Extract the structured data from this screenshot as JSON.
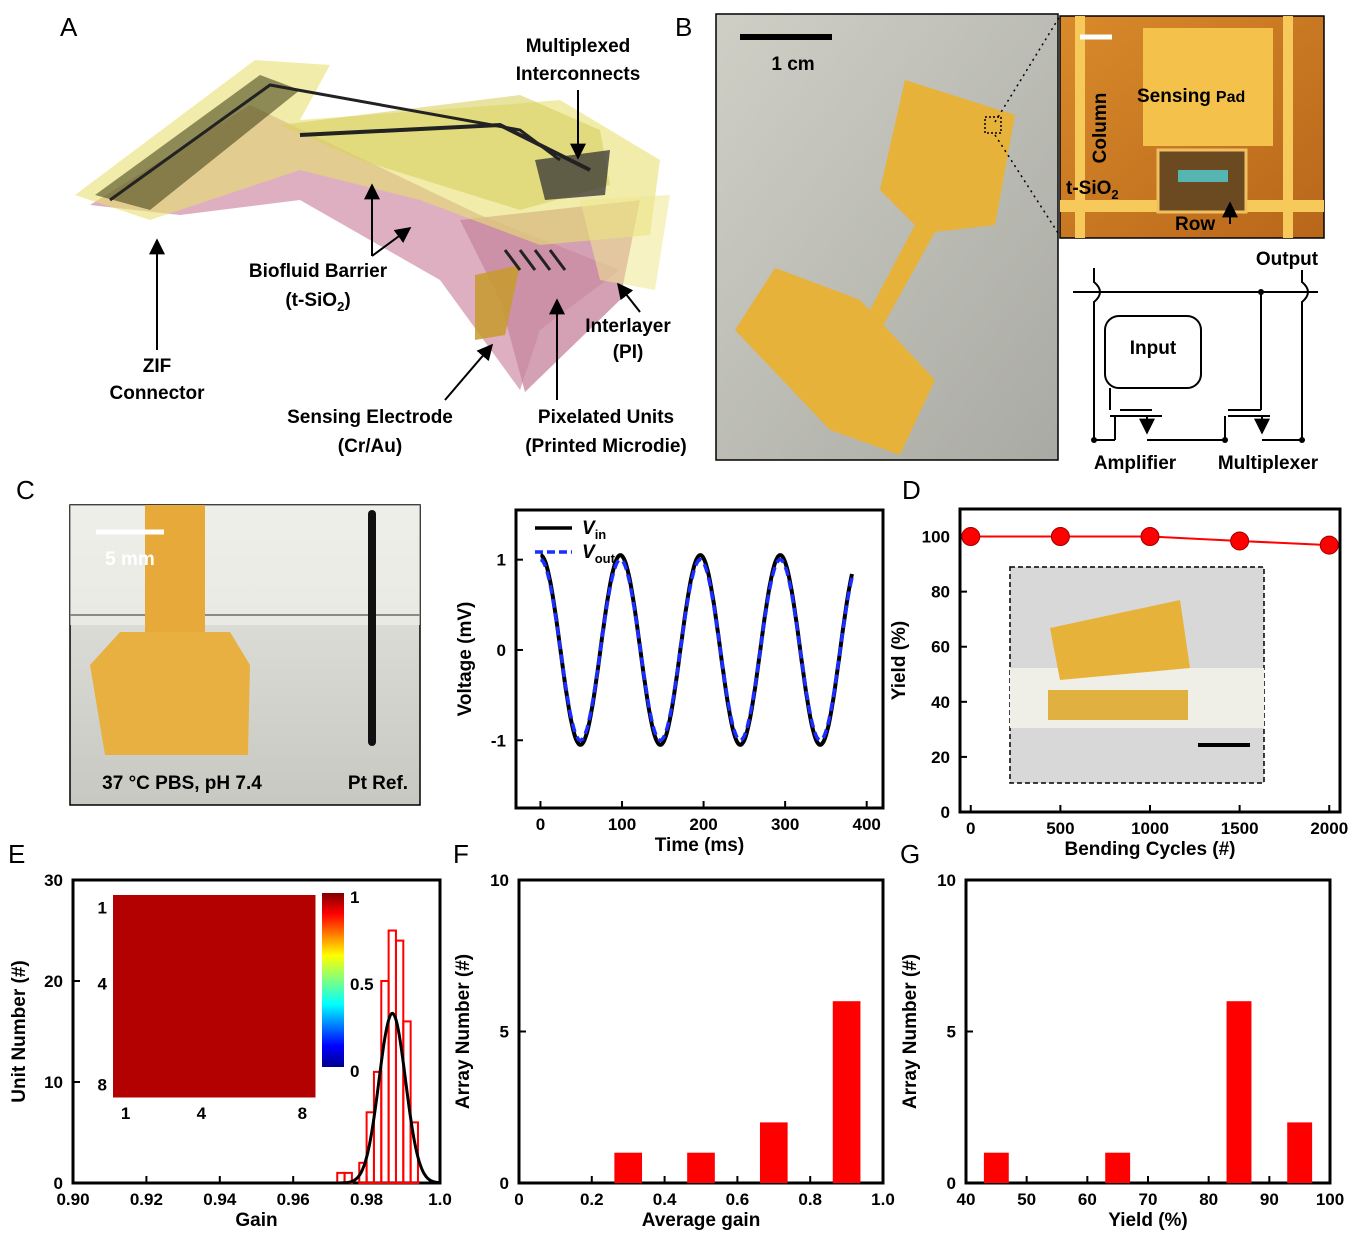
{
  "panels": {
    "a": {
      "letter": "A",
      "labels": {
        "mux1": "Multiplexed",
        "mux2": "Interconnects",
        "bio1": "Biofluid Barrier",
        "bio2": "(t-SiO",
        "zif1": "ZIF",
        "zif2": "Connector",
        "inter1": "Interlayer",
        "inter2": "(PI)",
        "sens1": "Sensing Electrode",
        "sens2": "(Cr/Au)",
        "pix1": "Pixelated Units",
        "pix2": "(Printed Microdie)"
      }
    },
    "b": {
      "letter": "B",
      "scale": "1 cm",
      "micro": {
        "column": "Column",
        "pad": "Sensing",
        "pad_small": "Pad",
        "tsio": "t-SiO",
        "row": "Row"
      },
      "circuit": {
        "output": "Output",
        "input": "Input",
        "amplifier": "Amplifier",
        "multiplexer": "Multiplexer"
      }
    },
    "c": {
      "letter": "C",
      "photo": {
        "scale": "5 mm",
        "caption_left": "37 °C PBS, pH 7.4",
        "caption_right": "Pt Ref."
      }
    },
    "d": {
      "letter": "D",
      "inset_scale_bar": true
    },
    "e": {
      "letter": "E"
    },
    "f": {
      "letter": "F"
    },
    "g": {
      "letter": "G"
    }
  },
  "colors": {
    "red": "#ff0000",
    "blue": "#1a2eff",
    "black": "#000000",
    "polyimide": "#e6b23a",
    "pink": "#d59bb0"
  },
  "chart_data": [
    {
      "id": "C-plot",
      "type": "line",
      "xlabel": "Time (ms)",
      "ylabel": "Voltage (mV)",
      "xlim": [
        -30,
        420
      ],
      "ylim": [
        -1.75,
        1.55
      ],
      "xticks": [
        0,
        100,
        200,
        300,
        400
      ],
      "yticks": [
        -1,
        0,
        1
      ],
      "legend": {
        "position": "top-left"
      },
      "series": [
        {
          "name": "V",
          "sub": "in",
          "color": "#000000",
          "style": "solid",
          "amplitude": 1.05,
          "period_ms": 98,
          "phase_deg": 90,
          "x_range": [
            0,
            382
          ]
        },
        {
          "name": "V",
          "sub": "out",
          "color": "#1a2eff",
          "style": "dashed",
          "amplitude": 1.0,
          "period_ms": 98,
          "phase_deg": 90,
          "x_range": [
            0,
            382
          ]
        }
      ]
    },
    {
      "id": "D-plot",
      "type": "line",
      "xlabel": "Bending Cycles (#)",
      "ylabel": "Yield (%)",
      "xlim": [
        -60,
        2060
      ],
      "ylim": [
        0,
        110
      ],
      "xticks": [
        0,
        500,
        1000,
        1500,
        2000
      ],
      "yticks": [
        0,
        20,
        40,
        60,
        80,
        100
      ],
      "series": [
        {
          "color": "#ff0000",
          "x": [
            0,
            500,
            1000,
            1500,
            2000
          ],
          "y": [
            100,
            100,
            100,
            98.4,
            96.9
          ]
        }
      ]
    },
    {
      "id": "E-plot",
      "type": "bar",
      "xlabel": "Gain",
      "ylabel": "Unit  Number (#)",
      "xlim": [
        0.9,
        1.0
      ],
      "ylim": [
        0,
        30
      ],
      "xticks": [
        0.9,
        0.92,
        0.94,
        0.96,
        0.98,
        1.0
      ],
      "xtick_labels": [
        "0.90",
        "0.92",
        "0.94",
        "0.96",
        "0.98",
        "1.0"
      ],
      "yticks": [
        0,
        10,
        20,
        30
      ],
      "histogram": {
        "bin_width": 0.002,
        "bins": [
          [
            0.972,
            1
          ],
          [
            0.974,
            1
          ],
          [
            0.978,
            2
          ],
          [
            0.98,
            7
          ],
          [
            0.982,
            11
          ],
          [
            0.984,
            20
          ],
          [
            0.986,
            25
          ],
          [
            0.988,
            24
          ],
          [
            0.99,
            16
          ],
          [
            0.992,
            6
          ]
        ],
        "color": "#ff0000"
      },
      "fit": {
        "type": "gaussian",
        "mean": 0.987,
        "sigma": 0.0036,
        "peak": 16.8,
        "color": "#000000"
      },
      "inset_heatmap": {
        "rows": 8,
        "cols": 8,
        "value": 0.98,
        "xticks": [
          "1",
          "4",
          "8"
        ],
        "yticks": [
          "1",
          "4",
          "8"
        ],
        "colorbar": {
          "min": 0,
          "max": 1,
          "ticks": [
            "1",
            "0.5",
            "0"
          ],
          "colormap": "jet"
        }
      }
    },
    {
      "id": "F-plot",
      "type": "bar",
      "xlabel": "Average gain",
      "ylabel": "Array Number (#)",
      "xlim": [
        0,
        1.0
      ],
      "ylim": [
        0,
        10
      ],
      "xticks": [
        0,
        0.2,
        0.4,
        0.6,
        0.8,
        1.0
      ],
      "xtick_labels": [
        "0",
        "0.2",
        "0.4",
        "0.6",
        "0.8",
        "1.0"
      ],
      "yticks": [
        0,
        5,
        10
      ],
      "bars": [
        {
          "x": 0.3,
          "value": 1
        },
        {
          "x": 0.5,
          "value": 1
        },
        {
          "x": 0.7,
          "value": 2
        },
        {
          "x": 0.9,
          "value": 6
        }
      ],
      "bar_width": 0.1,
      "color": "#ff0000"
    },
    {
      "id": "G-plot",
      "type": "bar",
      "xlabel": "Yield (%)",
      "ylabel": "Array Number (#)",
      "xlim": [
        40,
        100
      ],
      "ylim": [
        0,
        10
      ],
      "xticks": [
        40,
        50,
        60,
        70,
        80,
        90,
        100
      ],
      "yticks": [
        0,
        5,
        10
      ],
      "bars": [
        {
          "x": 45,
          "value": 1
        },
        {
          "x": 65,
          "value": 1
        },
        {
          "x": 85,
          "value": 6
        },
        {
          "x": 95,
          "value": 2
        }
      ],
      "bar_width": 5.4,
      "color": "#ff0000"
    }
  ]
}
